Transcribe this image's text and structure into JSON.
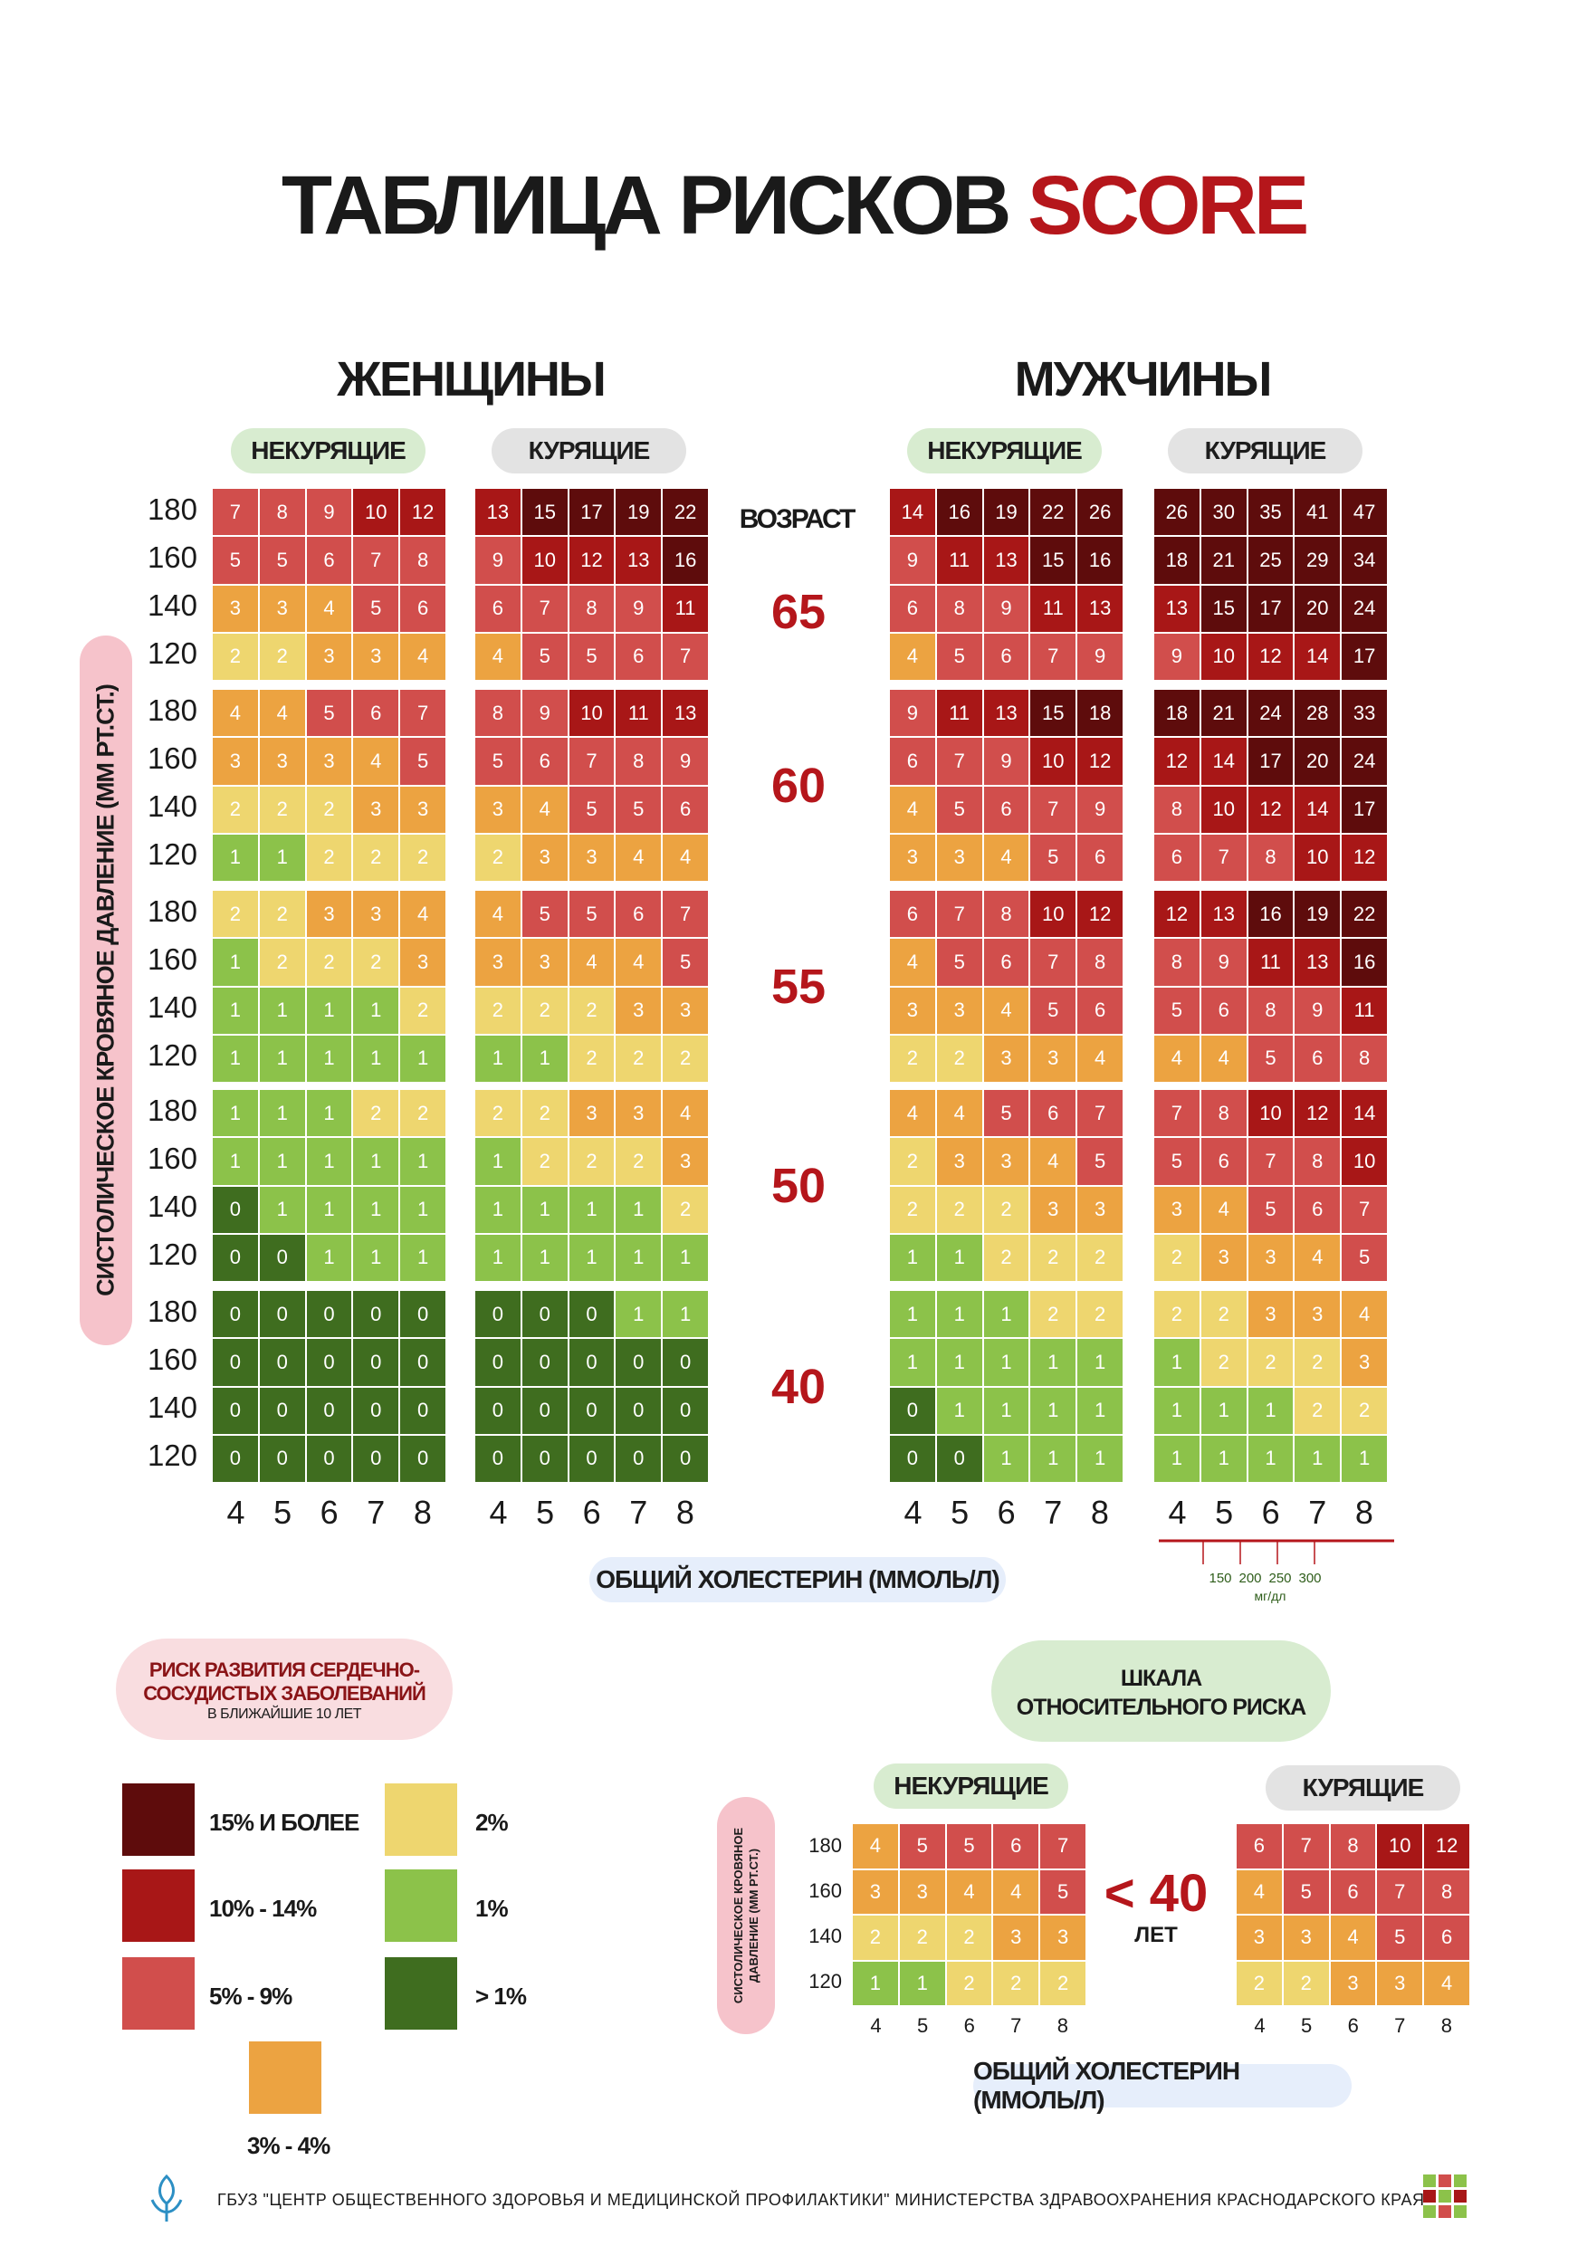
{
  "title": {
    "main": "ТАБЛИЦА РИСКОВ ",
    "accent": "SCORE"
  },
  "sections": {
    "women": "ЖЕНЩИНЫ",
    "men": "МУЖЧИНЫ"
  },
  "labels": {
    "nonsmoking": "НЕКУРЯЩИЕ",
    "smoking": "КУРЯЩИЕ",
    "age": "ВОЗРАСТ",
    "y_axis": "СИСТОЛИЧЕСКОЕ КРОВЯНОЕ ДАВЛЕНИЕ (ММ РТ.СТ.)",
    "x_axis": "ОБЩИЙ ХОЛЕСТЕРИН (ММОЛЬ/Л)"
  },
  "chart_data": {
    "type": "heatmap",
    "bp_levels": [
      180,
      160,
      140,
      120
    ],
    "cholesterol_levels": [
      4,
      5,
      6,
      7,
      8
    ],
    "ages": [
      65,
      60,
      55,
      50,
      40
    ],
    "women": {
      "nonsmoking": [
        [
          [
            7,
            8,
            9,
            10,
            12
          ],
          [
            5,
            5,
            6,
            7,
            8
          ],
          [
            3,
            3,
            4,
            5,
            6
          ],
          [
            2,
            2,
            3,
            3,
            4
          ]
        ],
        [
          [
            4,
            4,
            5,
            6,
            7
          ],
          [
            3,
            3,
            3,
            4,
            5
          ],
          [
            2,
            2,
            2,
            3,
            3
          ],
          [
            1,
            1,
            2,
            2,
            2
          ]
        ],
        [
          [
            2,
            2,
            3,
            3,
            4
          ],
          [
            1,
            2,
            2,
            2,
            3
          ],
          [
            1,
            1,
            1,
            1,
            2
          ],
          [
            1,
            1,
            1,
            1,
            1
          ]
        ],
        [
          [
            1,
            1,
            1,
            2,
            2
          ],
          [
            1,
            1,
            1,
            1,
            1
          ],
          [
            0,
            1,
            1,
            1,
            1
          ],
          [
            0,
            0,
            1,
            1,
            1
          ]
        ],
        [
          [
            0,
            0,
            0,
            0,
            0
          ],
          [
            0,
            0,
            0,
            0,
            0
          ],
          [
            0,
            0,
            0,
            0,
            0
          ],
          [
            0,
            0,
            0,
            0,
            0
          ]
        ]
      ],
      "smoking": [
        [
          [
            13,
            15,
            17,
            19,
            22
          ],
          [
            9,
            10,
            12,
            13,
            16
          ],
          [
            6,
            7,
            8,
            9,
            11
          ],
          [
            4,
            5,
            5,
            6,
            7
          ]
        ],
        [
          [
            8,
            9,
            10,
            11,
            13
          ],
          [
            5,
            6,
            7,
            8,
            9
          ],
          [
            3,
            4,
            5,
            5,
            6
          ],
          [
            2,
            3,
            3,
            4,
            4
          ]
        ],
        [
          [
            4,
            5,
            5,
            6,
            7
          ],
          [
            3,
            3,
            4,
            4,
            5
          ],
          [
            2,
            2,
            2,
            3,
            3
          ],
          [
            1,
            1,
            2,
            2,
            2
          ]
        ],
        [
          [
            2,
            2,
            3,
            3,
            4
          ],
          [
            1,
            2,
            2,
            2,
            3
          ],
          [
            1,
            1,
            1,
            1,
            2
          ],
          [
            1,
            1,
            1,
            1,
            1
          ]
        ],
        [
          [
            0,
            0,
            0,
            1,
            1
          ],
          [
            0,
            0,
            0,
            0,
            0
          ],
          [
            0,
            0,
            0,
            0,
            0
          ],
          [
            0,
            0,
            0,
            0,
            0
          ]
        ]
      ]
    },
    "men": {
      "nonsmoking": [
        [
          [
            14,
            16,
            19,
            22,
            26
          ],
          [
            9,
            11,
            13,
            15,
            16
          ],
          [
            6,
            8,
            9,
            11,
            13
          ],
          [
            4,
            5,
            6,
            7,
            9
          ]
        ],
        [
          [
            9,
            11,
            13,
            15,
            18
          ],
          [
            6,
            7,
            9,
            10,
            12
          ],
          [
            4,
            5,
            6,
            7,
            9
          ],
          [
            3,
            3,
            4,
            5,
            6
          ]
        ],
        [
          [
            6,
            7,
            8,
            10,
            12
          ],
          [
            4,
            5,
            6,
            7,
            8
          ],
          [
            3,
            3,
            4,
            5,
            6
          ],
          [
            2,
            2,
            3,
            3,
            4
          ]
        ],
        [
          [
            4,
            4,
            5,
            6,
            7
          ],
          [
            2,
            3,
            3,
            4,
            5
          ],
          [
            2,
            2,
            2,
            3,
            3
          ],
          [
            1,
            1,
            2,
            2,
            2
          ]
        ],
        [
          [
            1,
            1,
            1,
            2,
            2
          ],
          [
            1,
            1,
            1,
            1,
            1
          ],
          [
            0,
            1,
            1,
            1,
            1
          ],
          [
            0,
            0,
            1,
            1,
            1
          ]
        ]
      ],
      "smoking": [
        [
          [
            26,
            30,
            35,
            41,
            47
          ],
          [
            18,
            21,
            25,
            29,
            34
          ],
          [
            13,
            15,
            17,
            20,
            24
          ],
          [
            9,
            10,
            12,
            14,
            17
          ]
        ],
        [
          [
            18,
            21,
            24,
            28,
            33
          ],
          [
            12,
            14,
            17,
            20,
            24
          ],
          [
            8,
            10,
            12,
            14,
            17
          ],
          [
            6,
            7,
            8,
            10,
            12
          ]
        ],
        [
          [
            12,
            13,
            16,
            19,
            22
          ],
          [
            8,
            9,
            11,
            13,
            16
          ],
          [
            5,
            6,
            8,
            9,
            11
          ],
          [
            4,
            4,
            5,
            6,
            8
          ]
        ],
        [
          [
            7,
            8,
            10,
            12,
            14
          ],
          [
            5,
            6,
            7,
            8,
            10
          ],
          [
            3,
            4,
            5,
            6,
            7
          ],
          [
            2,
            3,
            3,
            4,
            5
          ]
        ],
        [
          [
            2,
            2,
            3,
            3,
            4
          ],
          [
            1,
            2,
            2,
            2,
            3
          ],
          [
            1,
            1,
            1,
            2,
            2
          ],
          [
            1,
            1,
            1,
            1,
            1
          ]
        ]
      ]
    },
    "relative": {
      "nonsmoking": [
        [
          4,
          5,
          5,
          6,
          7
        ],
        [
          3,
          3,
          4,
          4,
          5
        ],
        [
          2,
          2,
          2,
          3,
          3
        ],
        [
          1,
          1,
          2,
          2,
          2
        ]
      ],
      "smoking": [
        [
          6,
          7,
          8,
          10,
          12
        ],
        [
          4,
          5,
          6,
          7,
          8
        ],
        [
          3,
          3,
          4,
          5,
          6
        ],
        [
          2,
          2,
          3,
          3,
          4
        ]
      ]
    }
  },
  "mgdl": {
    "ticks": [
      "150",
      "200",
      "250",
      "300"
    ],
    "unit": "мг/дл"
  },
  "colors": {
    "c15": "#5e0c0c",
    "c10": "#a81717",
    "c5": "#d14e4c",
    "c3": "#eca341",
    "c2": "#eed66f",
    "c1": "#8cc24a",
    "c0": "#3f6d1f"
  },
  "legend": {
    "title_l1": "РИСК РАЗВИТИЯ СЕРДЕЧНО-",
    "title_l2": "СОСУДИСТЫХ ЗАБОЛЕВАНИЙ",
    "title_l3": "В БЛИЖАЙШИЕ 10 ЛЕТ",
    "items": [
      {
        "label": "15% И БОЛЕЕ"
      },
      {
        "label": "10% - 14%"
      },
      {
        "label": "5% - 9%"
      },
      {
        "label": "2%"
      },
      {
        "label": "1%"
      },
      {
        "label": "> 1%"
      },
      {
        "label": "3% - 4%"
      }
    ]
  },
  "relative_scale": {
    "title_l1": "ШКАЛА",
    "title_l2": "ОТНОСИТЕЛЬНОГО РИСКА",
    "y_l1": "СИСТОЛИЧЕСКОЕ КРОВЯНОЕ",
    "y_l2": "ДАВЛЕНИЕ (ММ РТ.СТ.)",
    "age_value": "< 40",
    "age_unit": "ЛЕТ"
  },
  "footer": "ГБУЗ \"ЦЕНТР ОБЩЕСТВЕННОГО ЗДОРОВЬЯ И МЕДИЦИНСКОЙ ПРОФИЛАКТИКИ\" МИНИСТЕРСТВА ЗДРАВООХРАНЕНИЯ КРАСНОДАРСКОГО КРАЯ"
}
